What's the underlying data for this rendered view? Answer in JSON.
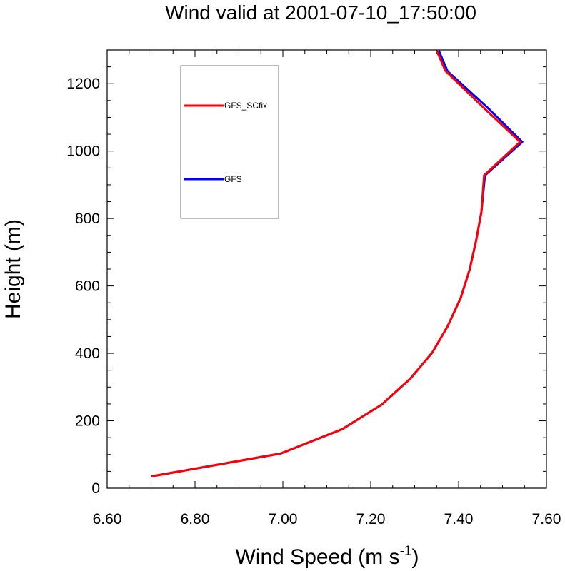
{
  "chart_data": {
    "type": "line",
    "title": "Wind valid at 2001-07-10_17:50:00",
    "xlabel": "Wind Speed (m s",
    "xlabel_sup": "-1",
    "xlabel_end": ")",
    "ylabel": "Height (m)",
    "xlim": [
      6.6,
      7.6
    ],
    "ylim": [
      0,
      1300
    ],
    "x_ticks": [
      "6.60",
      "6.80",
      "7.00",
      "7.20",
      "7.40",
      "7.60"
    ],
    "x_tick_values": [
      6.6,
      6.8,
      7.0,
      7.2,
      7.4,
      7.6
    ],
    "y_ticks": [
      "0",
      "200",
      "400",
      "600",
      "800",
      "1000",
      "1200"
    ],
    "y_tick_values": [
      0,
      200,
      400,
      600,
      800,
      1000,
      1200
    ],
    "grid": false,
    "legend_position": "top-left",
    "series": [
      {
        "name": "GFS",
        "color": "#0000ff",
        "points": [
          [
            6.7,
            35
          ],
          [
            6.995,
            103
          ],
          [
            7.135,
            175
          ],
          [
            7.225,
            248
          ],
          [
            7.29,
            325
          ],
          [
            7.34,
            402
          ],
          [
            7.375,
            480
          ],
          [
            7.405,
            565
          ],
          [
            7.425,
            648
          ],
          [
            7.44,
            735
          ],
          [
            7.452,
            820
          ],
          [
            7.46,
            928
          ],
          [
            7.545,
            1027
          ],
          [
            7.465,
            1130
          ],
          [
            7.375,
            1237
          ],
          [
            7.355,
            1298
          ]
        ]
      },
      {
        "name": "GFS_SCfix",
        "color": "#ff0000",
        "points": [
          [
            6.7,
            35
          ],
          [
            6.995,
            103
          ],
          [
            7.135,
            175
          ],
          [
            7.225,
            248
          ],
          [
            7.29,
            325
          ],
          [
            7.34,
            402
          ],
          [
            7.375,
            480
          ],
          [
            7.405,
            565
          ],
          [
            7.425,
            648
          ],
          [
            7.44,
            735
          ],
          [
            7.452,
            820
          ],
          [
            7.458,
            928
          ],
          [
            7.54,
            1027
          ],
          [
            7.46,
            1125
          ],
          [
            7.37,
            1238
          ],
          [
            7.35,
            1298
          ]
        ]
      }
    ]
  },
  "legend": {
    "items": [
      {
        "label": "GFS_SCfix",
        "color": "#ff0000"
      },
      {
        "label": "GFS",
        "color": "#0000ff"
      }
    ]
  }
}
